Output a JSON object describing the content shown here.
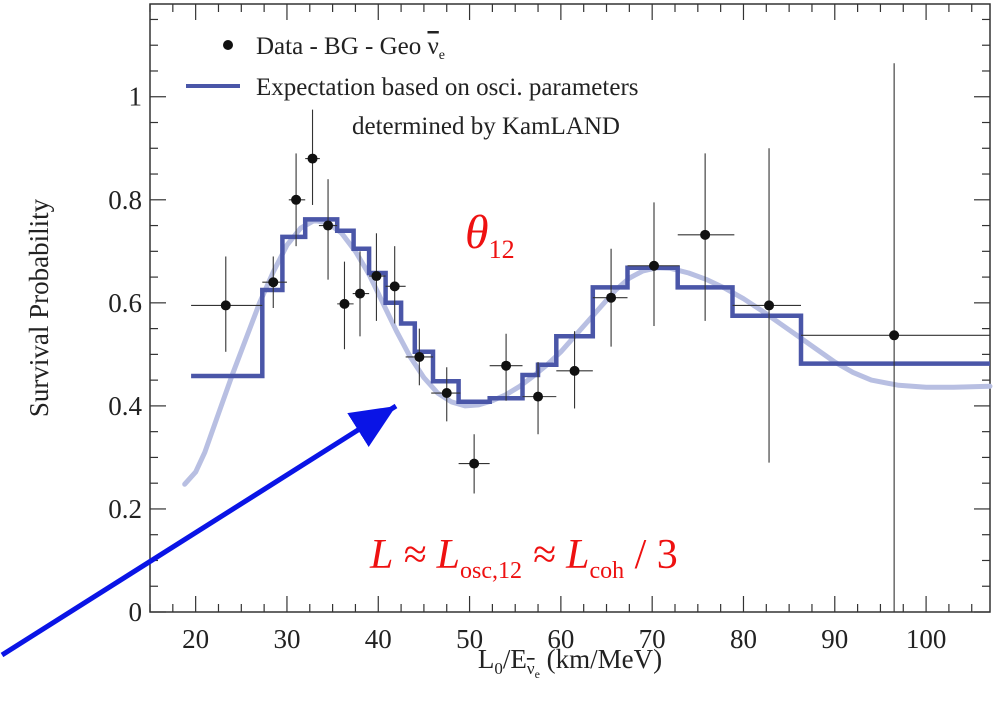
{
  "chart_data": {
    "type": "scatter",
    "xlabel": {
      "base": "L",
      "base_sub": "0",
      "slash": "/E",
      "nu_sub": "ν",
      "nu_sub_sub": "e",
      "unit": " (km/MeV)"
    },
    "ylabel": "Survival Probability",
    "xlim": [
      15,
      107
    ],
    "ylim": [
      0,
      1.18
    ],
    "x_ticks": [
      20,
      30,
      40,
      50,
      60,
      70,
      80,
      90,
      100
    ],
    "y_ticks": [
      0,
      0.2,
      0.4,
      0.6,
      0.8,
      1
    ],
    "y_tick_labels": [
      "0",
      "0.2",
      "0.4",
      "0.6",
      "0.8",
      "1"
    ],
    "grid": false,
    "legend_position": "top-left",
    "legend": {
      "data_label_prefix": "Data - BG - Geo ",
      "data_label_nu": "ν",
      "data_label_nu_sub": "e",
      "line_label_1": "Expectation based on osci. parameters",
      "line_label_2": "determined by KamLAND"
    },
    "series": [
      {
        "name": "Data - BG - Geo νe",
        "kind": "points",
        "color": "#111111",
        "x": [
          23.3,
          28.5,
          31.0,
          32.8,
          34.5,
          36.3,
          38.0,
          39.8,
          41.8,
          44.5,
          47.5,
          50.5,
          54.0,
          57.5,
          61.5,
          65.5,
          70.2,
          75.8,
          82.8,
          96.5
        ],
        "y": [
          0.595,
          0.64,
          0.8,
          0.88,
          0.75,
          0.598,
          0.618,
          0.652,
          0.632,
          0.495,
          0.425,
          0.288,
          0.478,
          0.418,
          0.468,
          0.61,
          0.672,
          0.732,
          0.595,
          0.537
        ],
        "y_low": [
          0.505,
          0.59,
          0.71,
          0.79,
          0.645,
          0.51,
          0.535,
          0.565,
          0.56,
          0.44,
          0.37,
          0.23,
          0.41,
          0.345,
          0.395,
          0.515,
          0.555,
          0.565,
          0.29,
          0.0
        ],
        "y_high": [
          0.69,
          0.69,
          0.89,
          0.975,
          0.84,
          0.68,
          0.7,
          0.735,
          0.71,
          0.55,
          0.475,
          0.345,
          0.54,
          0.485,
          0.545,
          0.705,
          0.795,
          0.89,
          0.9,
          1.065
        ],
        "x_low": [
          19.5,
          27.3,
          30.2,
          32.0,
          33.5,
          35.5,
          37.2,
          39.0,
          40.8,
          43.0,
          45.8,
          48.8,
          52.2,
          55.8,
          59.5,
          63.5,
          67.3,
          72.8,
          78.8,
          86.3
        ],
        "x_high": [
          27.3,
          30.0,
          32.0,
          33.6,
          35.5,
          37.3,
          39.0,
          40.8,
          43.0,
          46.0,
          49.0,
          52.2,
          55.8,
          59.5,
          63.5,
          67.3,
          73.0,
          79.0,
          86.3,
          107.0
        ]
      },
      {
        "name": "Expectation based on osci. parameters determined by KamLAND",
        "kind": "step",
        "color": "#4a56a8",
        "edges": [
          19.5,
          27.3,
          29.5,
          32.0,
          35.5,
          37.3,
          39.0,
          40.8,
          42.5,
          44.0,
          46.0,
          48.8,
          52.2,
          55.8,
          57.5,
          59.5,
          63.5,
          67.3,
          72.8,
          78.8,
          86.3,
          107.0
        ],
        "values": [
          0.458,
          0.625,
          0.728,
          0.762,
          0.74,
          0.705,
          0.658,
          0.6,
          0.56,
          0.505,
          0.448,
          0.408,
          0.415,
          0.46,
          0.48,
          0.535,
          0.63,
          0.668,
          0.63,
          0.575,
          0.482
        ]
      },
      {
        "name": "Expectation (smooth)",
        "kind": "smooth",
        "color": "#b8bfe2",
        "x": [
          18.8,
          20.0,
          21.0,
          22.5,
          24.0,
          25.5,
          27.0,
          28.5,
          30.0,
          31.5,
          33.0,
          34.5,
          36.0,
          37.5,
          39.0,
          40.5,
          42.0,
          43.5,
          45.0,
          46.5,
          48.0,
          49.5,
          51.0,
          52.5,
          54.0,
          55.5,
          57.0,
          58.5,
          60.0,
          61.5,
          63.0,
          64.5,
          66.0,
          67.5,
          69.0,
          70.5,
          72.0,
          74.0,
          76.0,
          78.0,
          80.0,
          82.0,
          84.0,
          86.0,
          88.0,
          90.0,
          92.0,
          94.0,
          97.0,
          100.0,
          103.0,
          107.0
        ],
        "y": [
          0.248,
          0.272,
          0.31,
          0.385,
          0.46,
          0.53,
          0.6,
          0.66,
          0.712,
          0.745,
          0.76,
          0.755,
          0.735,
          0.7,
          0.655,
          0.6,
          0.545,
          0.495,
          0.455,
          0.425,
          0.408,
          0.4,
          0.402,
          0.41,
          0.422,
          0.438,
          0.458,
          0.48,
          0.505,
          0.535,
          0.565,
          0.595,
          0.625,
          0.648,
          0.662,
          0.668,
          0.667,
          0.658,
          0.645,
          0.628,
          0.608,
          0.585,
          0.56,
          0.535,
          0.51,
          0.485,
          0.465,
          0.45,
          0.44,
          0.436,
          0.436,
          0.438
        ]
      }
    ],
    "annotations": {
      "theta": "θ",
      "theta_sub": "12",
      "formula": {
        "p1": "L ≈ L",
        "p1_sub": "osc,12",
        "p2": " ≈ L",
        "p2_sub": "coh",
        "p3": " / 3"
      }
    },
    "arrow": {
      "color": "#0a14e6"
    }
  }
}
